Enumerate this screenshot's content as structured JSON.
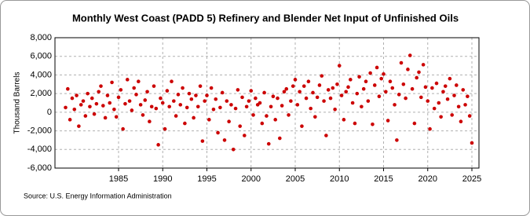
{
  "chart_data": {
    "type": "scatter",
    "title": "Monthly West Coast (PADD 5) Refinery and Blender Net Input of Unfinished Oils",
    "y_label": "Thousand Barrels",
    "source": "Source: U.S. Energy Information Administration",
    "color": "#cc0000",
    "grid": true,
    "xlim": [
      1977.8,
      2025.8
    ],
    "xticks": [
      1985,
      1990,
      1995,
      2000,
      2005,
      2010,
      2015,
      2020,
      2025
    ],
    "ylim": [
      -6000,
      8000
    ],
    "yticks": [
      {
        "value": -6000,
        "label": "-6,000"
      },
      {
        "value": -4000,
        "label": "-4,000"
      },
      {
        "value": -2000,
        "label": "-2,000"
      },
      0,
      {
        "value": 2000,
        "label": "2,000"
      },
      {
        "value": 4000,
        "label": "4,000"
      },
      {
        "value": 6000,
        "label": "6,000"
      },
      {
        "value": 8000,
        "label": "8,000"
      }
    ],
    "x": [
      1979,
      1979.25,
      1979.5,
      1979.75,
      1980,
      1980.25,
      1980.5,
      1980.75,
      1981,
      1981.25,
      1981.5,
      1981.75,
      1982,
      1982.25,
      1982.5,
      1982.75,
      1983,
      1983.25,
      1983.5,
      1983.75,
      1984,
      1984.25,
      1984.5,
      1984.75,
      1985,
      1985.25,
      1985.5,
      1985.75,
      1986,
      1986.25,
      1986.5,
      1986.75,
      1987,
      1987.25,
      1987.5,
      1987.75,
      1988,
      1988.25,
      1988.5,
      1988.75,
      1989,
      1989.25,
      1989.5,
      1989.75,
      1990,
      1990.25,
      1990.5,
      1990.75,
      1991,
      1991.25,
      1991.5,
      1991.75,
      1992,
      1992.25,
      1992.5,
      1992.75,
      1993,
      1993.25,
      1993.5,
      1993.75,
      1994,
      1994.25,
      1994.5,
      1994.75,
      1995,
      1995.25,
      1995.5,
      1995.75,
      1996,
      1996.25,
      1996.5,
      1996.75,
      1997,
      1997.25,
      1997.5,
      1997.75,
      1998,
      1998.25,
      1998.5,
      1998.75,
      1999,
      1999.25,
      1999.5,
      1999.75,
      2000,
      2000.25,
      2000.5,
      2000.75,
      2001,
      2001.25,
      2001.5,
      2001.75,
      2002,
      2002.25,
      2002.5,
      2002.75,
      2003,
      2003.25,
      2003.5,
      2003.75,
      2004,
      2004.25,
      2004.5,
      2004.75,
      2005,
      2005.25,
      2005.5,
      2005.75,
      2006,
      2006.25,
      2006.5,
      2006.75,
      2007,
      2007.25,
      2007.5,
      2007.75,
      2008,
      2008.25,
      2008.5,
      2008.75,
      2009,
      2009.25,
      2009.5,
      2009.75,
      2010,
      2010.25,
      2010.5,
      2010.75,
      2011,
      2011.25,
      2011.5,
      2011.75,
      2012,
      2012.25,
      2012.5,
      2012.75,
      2013,
      2013.25,
      2013.5,
      2013.75,
      2014,
      2014.25,
      2014.5,
      2014.75,
      2015,
      2015.25,
      2015.5,
      2015.75,
      2016,
      2016.25,
      2016.5,
      2016.75,
      2017,
      2017.25,
      2017.5,
      2017.75,
      2018,
      2018.25,
      2018.5,
      2018.75,
      2019,
      2019.25,
      2019.5,
      2019.75,
      2020,
      2020.25,
      2020.5,
      2020.75,
      2021,
      2021.25,
      2021.5,
      2021.75,
      2022,
      2022.25,
      2022.5,
      2022.75,
      2023,
      2023.25,
      2023.5,
      2023.75,
      2024,
      2024.25,
      2024.5,
      2024.75,
      2025
    ],
    "values": [
      500,
      2500,
      -800,
      1500,
      300,
      1800,
      -1500,
      800,
      1200,
      -400,
      2000,
      600,
      1500,
      -200,
      900,
      2200,
      2800,
      700,
      -600,
      1800,
      1000,
      3200,
      300,
      -500,
      1600,
      2400,
      -1800,
      900,
      3500,
      1200,
      200,
      2600,
      1900,
      3300,
      800,
      -300,
      1300,
      2200,
      -1000,
      600,
      2800,
      400,
      -3500,
      1500,
      1000,
      -1800,
      2300,
      600,
      3300,
      1200,
      -400,
      1900,
      800,
      2600,
      -1200,
      500,
      2000,
      1400,
      -600,
      1800,
      600,
      2800,
      -3100,
      1200,
      1800,
      -800,
      2600,
      300,
      1400,
      -2200,
      500,
      2100,
      -3000,
      1200,
      -1000,
      800,
      -4000,
      400,
      2400,
      -1500,
      1600,
      -2500,
      600,
      1200,
      2300,
      -300,
      1500,
      800,
      1000,
      -1200,
      2100,
      -400,
      -3400,
      600,
      1700,
      -800,
      1500,
      -2800,
      700,
      2200,
      2500,
      -300,
      1200,
      2800,
      3500,
      800,
      2200,
      -1500,
      2800,
      1500,
      3300,
      400,
      2100,
      -500,
      1600,
      2900,
      3900,
      1200,
      -2500,
      2400,
      1500,
      2600,
      300,
      3000,
      5000,
      1800,
      -800,
      2200,
      2700,
      3500,
      1000,
      -1200,
      2000,
      3800,
      600,
      2500,
      3300,
      1200,
      4200,
      -1300,
      2900,
      4800,
      1700,
      3600,
      4100,
      2200,
      -900,
      3300,
      2600,
      800,
      -3000,
      1900,
      5300,
      3000,
      1500,
      4600,
      6100,
      2500,
      -1200,
      3700,
      4300,
      1600,
      5100,
      2700,
      1200,
      -1800,
      2600,
      400,
      3100,
      1000,
      -500,
      2200,
      2800,
      1400,
      3600,
      -300,
      1800,
      2900,
      600,
      -1000,
      2400,
      800,
      1700,
      -400,
      -3300
    ]
  }
}
